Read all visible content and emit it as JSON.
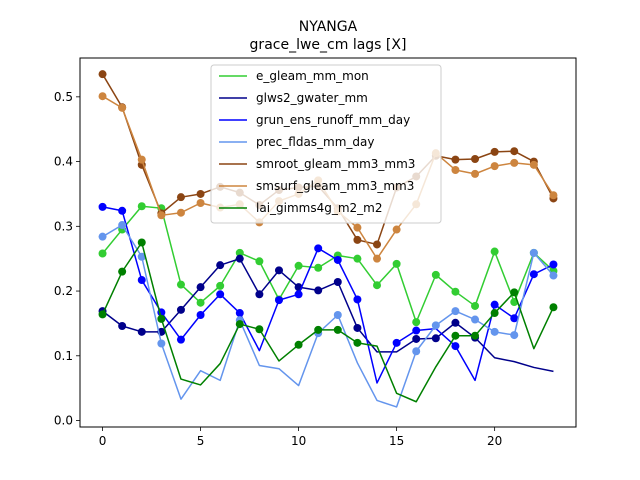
{
  "chart_data": {
    "type": "line",
    "title": "NYANGA",
    "subtitle": "grace_lwe_cm lags [X]",
    "xlabel": "",
    "ylabel": "",
    "xlim": [
      -1.15,
      24.15
    ],
    "ylim": [
      -0.01,
      0.56
    ],
    "x_ticks": [
      0,
      5,
      10,
      15,
      20
    ],
    "y_ticks": [
      0.0,
      0.1,
      0.2,
      0.3,
      0.4,
      0.5
    ],
    "x_tick_labels": [
      "0",
      "5",
      "10",
      "15",
      "20"
    ],
    "y_tick_labels": [
      "0.0",
      "0.1",
      "0.2",
      "0.3",
      "0.4",
      "0.5"
    ],
    "grid": false,
    "legend_position": "upper-center",
    "x": [
      0,
      1,
      2,
      3,
      4,
      5,
      6,
      7,
      8,
      9,
      10,
      11,
      12,
      13,
      14,
      15,
      16,
      17,
      18,
      19,
      20,
      21,
      22,
      23
    ],
    "series": [
      {
        "name": "e_gleam_mm_mon",
        "color": "#32cd32",
        "values": [
          0.258,
          0.295,
          0.331,
          0.328,
          0.21,
          0.182,
          0.208,
          0.259,
          0.246,
          0.187,
          0.239,
          0.236,
          0.255,
          0.25,
          0.209,
          0.242,
          0.152,
          0.225,
          0.199,
          0.177,
          0.261,
          0.183,
          0.259,
          0.231
        ],
        "markers": [
          true,
          true,
          true,
          true,
          true,
          true,
          true,
          true,
          true,
          true,
          true,
          true,
          true,
          true,
          true,
          true,
          true,
          true,
          true,
          true,
          true,
          true,
          true,
          true
        ]
      },
      {
        "name": "glws2_gwater_mm",
        "color": "#00008b",
        "values": [
          0.169,
          0.146,
          0.137,
          0.137,
          0.171,
          0.206,
          0.24,
          0.25,
          0.195,
          0.232,
          0.206,
          0.201,
          0.214,
          0.143,
          0.106,
          0.106,
          0.126,
          0.127,
          0.151,
          0.128,
          0.097,
          0.091,
          0.082,
          0.076
        ],
        "markers": [
          true,
          true,
          true,
          true,
          true,
          true,
          true,
          true,
          true,
          true,
          true,
          true,
          true,
          true,
          false,
          false,
          true,
          true,
          true,
          true,
          false,
          false,
          false,
          false
        ]
      },
      {
        "name": "grun_ens_runoff_mm_day",
        "color": "#0000ff",
        "values": [
          0.33,
          0.324,
          0.217,
          0.167,
          0.125,
          0.163,
          0.195,
          0.166,
          0.108,
          0.186,
          0.195,
          0.266,
          0.248,
          0.187,
          0.058,
          0.12,
          0.139,
          0.142,
          0.115,
          0.062,
          0.179,
          0.158,
          0.226,
          0.241
        ],
        "markers": [
          true,
          true,
          true,
          true,
          true,
          true,
          true,
          true,
          false,
          true,
          true,
          true,
          true,
          true,
          false,
          true,
          true,
          false,
          true,
          false,
          true,
          true,
          true,
          true
        ]
      },
      {
        "name": "prec_fldas_mm_day",
        "color": "#6495ed",
        "values": [
          0.284,
          0.302,
          0.253,
          0.119,
          0.033,
          0.077,
          0.062,
          0.155,
          0.085,
          0.08,
          0.054,
          0.135,
          0.163,
          0.089,
          0.031,
          0.021,
          0.107,
          0.147,
          0.169,
          0.156,
          0.137,
          0.132,
          0.259,
          0.224
        ],
        "markers": [
          true,
          true,
          true,
          true,
          false,
          false,
          false,
          true,
          false,
          false,
          false,
          true,
          true,
          false,
          false,
          false,
          true,
          true,
          true,
          true,
          true,
          true,
          true,
          true
        ]
      },
      {
        "name": "smroot_gleam_mm3_mm3",
        "color": "#8b4513",
        "values": [
          0.535,
          0.484,
          0.395,
          0.32,
          0.345,
          0.35,
          0.361,
          0.352,
          0.333,
          0.356,
          0.36,
          0.362,
          0.328,
          0.279,
          0.272,
          0.36,
          0.377,
          0.409,
          0.403,
          0.404,
          0.415,
          0.416,
          0.4,
          0.343
        ],
        "markers": [
          true,
          true,
          true,
          true,
          true,
          true,
          true,
          true,
          true,
          true,
          true,
          true,
          true,
          true,
          true,
          true,
          true,
          true,
          true,
          true,
          true,
          true,
          true,
          true
        ]
      },
      {
        "name": "smsurf_gleam_mm3_mm3",
        "color": "#cd853f",
        "values": [
          0.501,
          0.483,
          0.403,
          0.317,
          0.321,
          0.336,
          0.329,
          0.334,
          0.306,
          0.339,
          0.35,
          0.371,
          0.323,
          0.298,
          0.25,
          0.295,
          0.334,
          0.413,
          0.387,
          0.381,
          0.393,
          0.398,
          0.395,
          0.348
        ],
        "markers": [
          true,
          true,
          true,
          true,
          true,
          true,
          true,
          true,
          true,
          true,
          true,
          true,
          true,
          true,
          true,
          true,
          true,
          true,
          true,
          true,
          true,
          true,
          true,
          true
        ]
      },
      {
        "name": "lai_gimms4g_m2_m2",
        "color": "#008000",
        "values": [
          0.164,
          0.23,
          0.275,
          0.157,
          0.064,
          0.055,
          0.088,
          0.149,
          0.141,
          0.092,
          0.117,
          0.14,
          0.14,
          0.12,
          0.115,
          0.042,
          0.029,
          0.083,
          0.131,
          0.131,
          0.166,
          0.198,
          0.111,
          0.175
        ],
        "markers": [
          true,
          true,
          true,
          true,
          false,
          false,
          false,
          true,
          true,
          false,
          true,
          true,
          true,
          true,
          false,
          false,
          false,
          false,
          true,
          true,
          true,
          true,
          false,
          true
        ]
      }
    ]
  }
}
